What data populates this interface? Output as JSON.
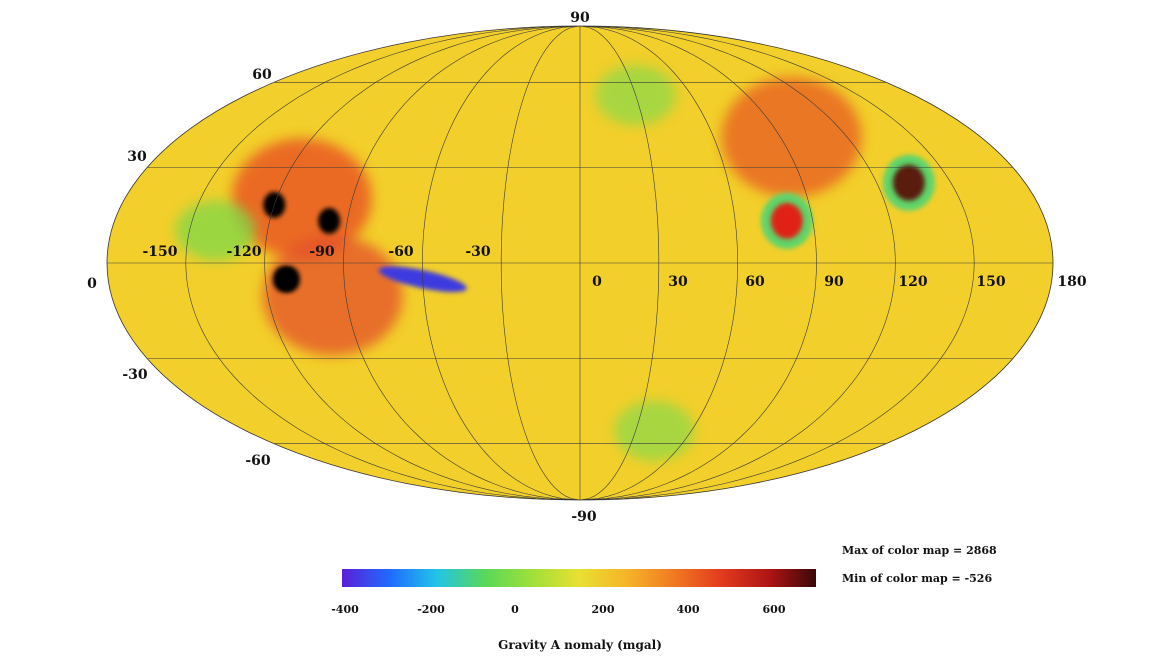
{
  "map": {
    "projection": "mollweide",
    "graticule_step_deg": 30,
    "lat_labels": [
      "90",
      "60",
      "30",
      "0",
      "-30",
      "-60",
      "-90"
    ],
    "lon_labels": [
      "-150",
      "-120",
      "-90",
      "-60",
      "-30",
      "0",
      "30",
      "60",
      "90",
      "120",
      "150",
      "180"
    ],
    "base_color": "#f2cf2a",
    "features": [
      {
        "kind": "high",
        "lon": -110,
        "lat": 20,
        "color": "#e84a22"
      },
      {
        "kind": "high",
        "lon": -95,
        "lat": -10,
        "color": "#e4502a"
      },
      {
        "kind": "high",
        "lon": 95,
        "lat": 40,
        "color": "#e75a22"
      },
      {
        "kind": "low",
        "lon": -140,
        "lat": 10,
        "color": "#7ed84a"
      },
      {
        "kind": "low",
        "lon": 30,
        "lat": 55,
        "color": "#8ed948"
      },
      {
        "kind": "low",
        "lon": 40,
        "lat": -55,
        "color": "#8ed948"
      },
      {
        "kind": "basin",
        "lon": -120,
        "lat": 18,
        "color": "#050505"
      },
      {
        "kind": "basin",
        "lon": -97,
        "lat": 13,
        "color": "#050505"
      },
      {
        "kind": "basin",
        "lon": -111,
        "lat": -5,
        "color": "#050505"
      },
      {
        "kind": "basin",
        "lon": -113,
        "lat": -5,
        "color": "#050505"
      },
      {
        "kind": "ring",
        "lon": 80,
        "lat": 13,
        "color": "#e02418"
      },
      {
        "kind": "ring",
        "lon": 133,
        "lat": 25,
        "color": "#5a1a10"
      },
      {
        "kind": "trough",
        "lon": -60,
        "lat": -5,
        "color": "#3d3ae0"
      }
    ]
  },
  "colorbar": {
    "ticks": [
      "-400",
      "-200",
      "0",
      "200",
      "400",
      "600"
    ],
    "title": "Gravity A nomaly (mgal)",
    "stops": [
      "#5a1fd6",
      "#1f6bff",
      "#22c4e8",
      "#57d85a",
      "#9ee03a",
      "#e8e032",
      "#f5b528",
      "#f07a22",
      "#e23b1e",
      "#b01414",
      "#3a0808"
    ]
  },
  "stats": {
    "max_text": "Max of color map = 2868",
    "min_text": "Min of color map = -526"
  }
}
